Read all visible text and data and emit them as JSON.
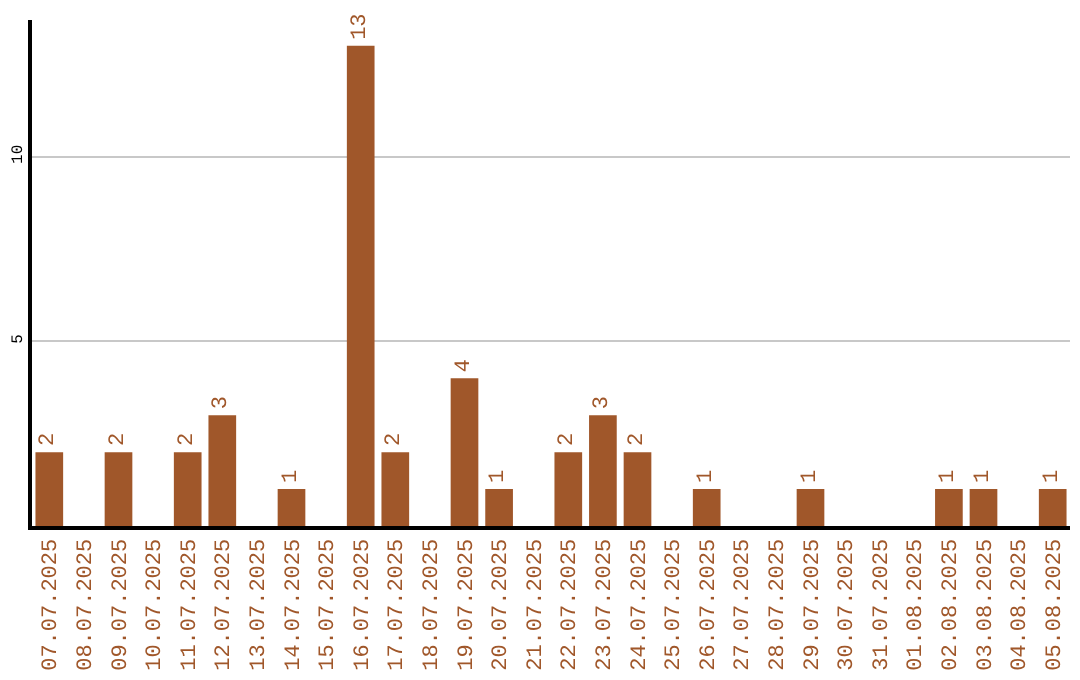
{
  "chart_data": {
    "type": "bar",
    "categories": [
      "07.07.2025",
      "08.07.2025",
      "09.07.2025",
      "10.07.2025",
      "11.07.2025",
      "12.07.2025",
      "13.07.2025",
      "14.07.2025",
      "15.07.2025",
      "16.07.2025",
      "17.07.2025",
      "18.07.2025",
      "19.07.2025",
      "20.07.2025",
      "21.07.2025",
      "22.07.2025",
      "23.07.2025",
      "24.07.2025",
      "25.07.2025",
      "26.07.2025",
      "27.07.2025",
      "28.07.2025",
      "29.07.2025",
      "30.07.2025",
      "31.07.2025",
      "01.08.2025",
      "02.08.2025",
      "03.08.2025",
      "04.08.2025",
      "05.08.2025"
    ],
    "values": [
      2,
      0,
      2,
      0,
      2,
      3,
      0,
      1,
      0,
      13,
      2,
      0,
      4,
      1,
      0,
      2,
      3,
      2,
      0,
      1,
      0,
      0,
      1,
      0,
      0,
      0,
      1,
      1,
      0,
      1
    ],
    "value_labels": [
      "2",
      null,
      "2",
      null,
      "2",
      "3",
      null,
      "1",
      null,
      "13",
      "2",
      null,
      "4",
      "1",
      null,
      "2",
      "3",
      "2",
      null,
      "1",
      null,
      null,
      "1",
      null,
      null,
      null,
      "1",
      "1",
      null,
      "1"
    ],
    "color": "#a0572a",
    "ylim": [
      0,
      13.7
    ],
    "yticks": [
      5,
      10
    ],
    "grid": "y"
  }
}
